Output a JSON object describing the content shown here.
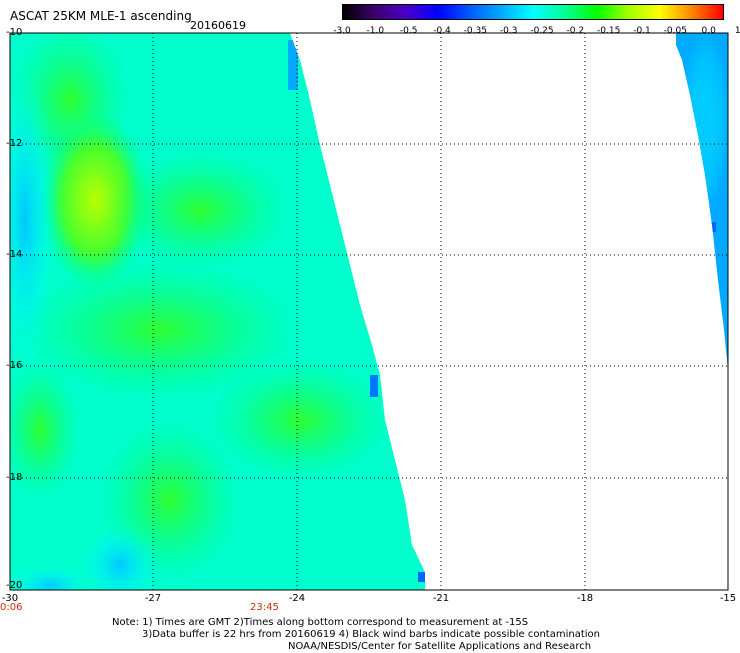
{
  "title": "ASCAT 25KM MLE-1 ascending",
  "date": "20160619",
  "colorbar": {
    "labels": [
      "-3.0",
      "-1.0",
      "-0.5",
      "-0.4",
      "-0.35",
      "-0.3",
      "-0.25",
      "-0.2",
      "-0.15",
      "-0.1",
      "-0.05",
      "0.0",
      "1.0"
    ],
    "colors": [
      "#000000",
      "#3b006e",
      "#4a00c8",
      "#0000ff",
      "#005aff",
      "#00aaff",
      "#00ffff",
      "#00ff99",
      "#00ff00",
      "#a0ff00",
      "#ffff00",
      "#ff8800",
      "#ff0000"
    ]
  },
  "axes": {
    "y_labels": [
      "-10",
      "-12",
      "-14",
      "-16",
      "-18",
      "-20"
    ],
    "x_labels": [
      "-30",
      "-27",
      "-24",
      "-21",
      "-18",
      "-15"
    ],
    "time_labels": [
      "0:06",
      "23:45"
    ]
  },
  "notes": {
    "line1": "Note: 1) Times are GMT 2)Times along bottom correspond to measurement at -15S",
    "line2": "3)Data buffer is 22 hrs from 20160619 4) Black wind barbs indicate possible contamination",
    "line3": "NOAA/NESDIS/Center for Satellite Applications and Research"
  },
  "field_colors": {
    "cyan": "#00ffff",
    "green": "#00ff66",
    "yellow_green": "#a0ff00",
    "blue": "#00aaff"
  }
}
